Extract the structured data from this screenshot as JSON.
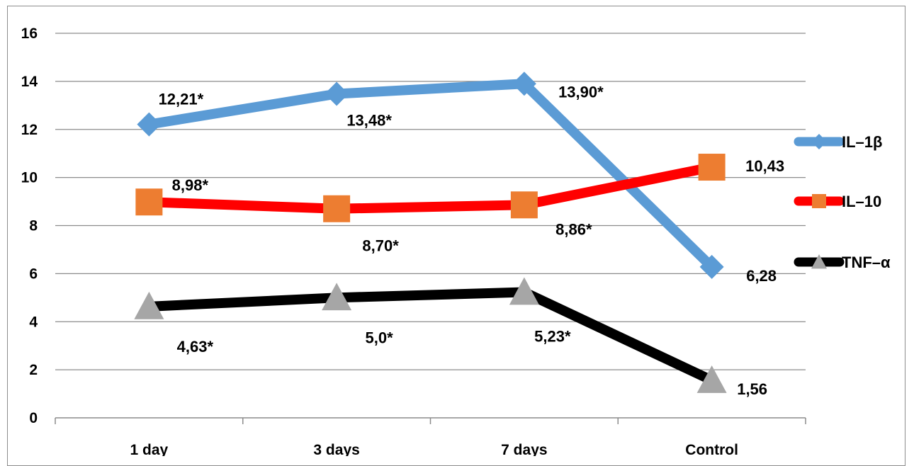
{
  "chart_data": {
    "type": "line",
    "categories": [
      "1 day",
      "3 days",
      "7 days",
      "Control"
    ],
    "ylim": [
      0,
      16
    ],
    "yticks": [
      "0",
      "2",
      "4",
      "6",
      "8",
      "10",
      "12",
      "14",
      "16"
    ],
    "grid": "horizontal",
    "legend_position": "right",
    "series": [
      {
        "name": "IL–1β",
        "values": [
          12.21,
          13.48,
          13.9,
          6.28
        ],
        "labels": [
          "12,21*",
          "13,48*",
          "13,90*",
          "6,28"
        ],
        "color": "#5b9bd5",
        "marker": "diamond",
        "marker_color": "#5b9bd5"
      },
      {
        "name": "IL–10",
        "values": [
          8.98,
          8.7,
          8.86,
          10.43
        ],
        "labels": [
          "8,98*",
          "8,70*",
          "8,86*",
          "10,43"
        ],
        "color": "#ff0000",
        "marker": "square",
        "marker_color": "#ed7d31"
      },
      {
        "name": "TNF–α",
        "values": [
          4.63,
          5.0,
          5.23,
          1.56
        ],
        "labels": [
          "4,63*",
          "5,0*",
          "5,23*",
          "1,56"
        ],
        "color": "#000000",
        "marker": "triangle",
        "marker_color": "#a6a6a6"
      }
    ]
  }
}
